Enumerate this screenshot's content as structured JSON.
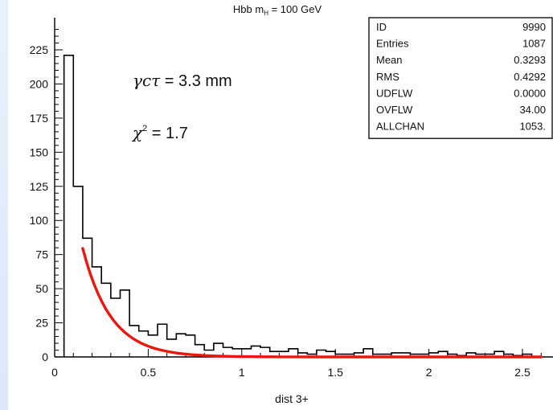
{
  "chart_data": {
    "type": "bar",
    "title": "Hbb m",
    "title_sub": "H",
    "title_tail": " = 100 GeV",
    "xlabel": "dist 3+",
    "ylabel": "",
    "xlim": [
      0,
      2.6
    ],
    "ylim": [
      0,
      240
    ],
    "x_ticks": [
      0,
      0.5,
      1,
      1.5,
      2,
      2.5
    ],
    "x_tick_labels": [
      "0",
      "0.5",
      "1",
      "1.5",
      "2",
      "2.5"
    ],
    "y_ticks": [
      0,
      25,
      50,
      75,
      100,
      125,
      150,
      175,
      200,
      225
    ],
    "y_tick_labels": [
      "0",
      "25",
      "50",
      "75",
      "100",
      "125",
      "150",
      "175",
      "200",
      "225"
    ],
    "bin_width": 0.05,
    "bin_start": 0.05,
    "histogram": {
      "values": [
        221,
        125,
        87,
        66,
        54,
        43,
        49,
        23,
        19,
        16,
        24,
        13,
        17,
        16,
        9,
        5,
        10,
        7,
        6,
        6,
        8,
        7,
        4,
        4,
        6,
        3,
        2,
        5,
        4,
        2,
        2,
        3,
        6,
        2,
        2,
        3,
        3,
        2,
        2,
        3,
        4,
        2,
        1,
        3,
        2,
        2,
        4,
        2,
        1,
        2
      ]
    },
    "fit_curve": {
      "x_start": 0.15,
      "x_end": 2.6,
      "amplitude": 214,
      "decay": 6.6
    },
    "annotations": [
      {
        "lhs": "γcτ",
        "rhs": " = 3.3 mm"
      },
      {
        "lhs": "χ",
        "sup": "2",
        "rhs": " = 1.7"
      }
    ],
    "stats_box": [
      {
        "label": "ID",
        "value": "9990"
      },
      {
        "label": "Entries",
        "value": "1087"
      },
      {
        "label": "Mean",
        "value": "0.3293"
      },
      {
        "label": "RMS",
        "value": "0.4292"
      },
      {
        "label": "UDFLW",
        "value": "0.0000"
      },
      {
        "label": "OVFLW",
        "value": "34.00"
      },
      {
        "label": "ALLCHAN",
        "value": "1053."
      }
    ],
    "colors": {
      "histogram": "#000000",
      "fit": "#e8190c",
      "axis": "#000000"
    }
  }
}
